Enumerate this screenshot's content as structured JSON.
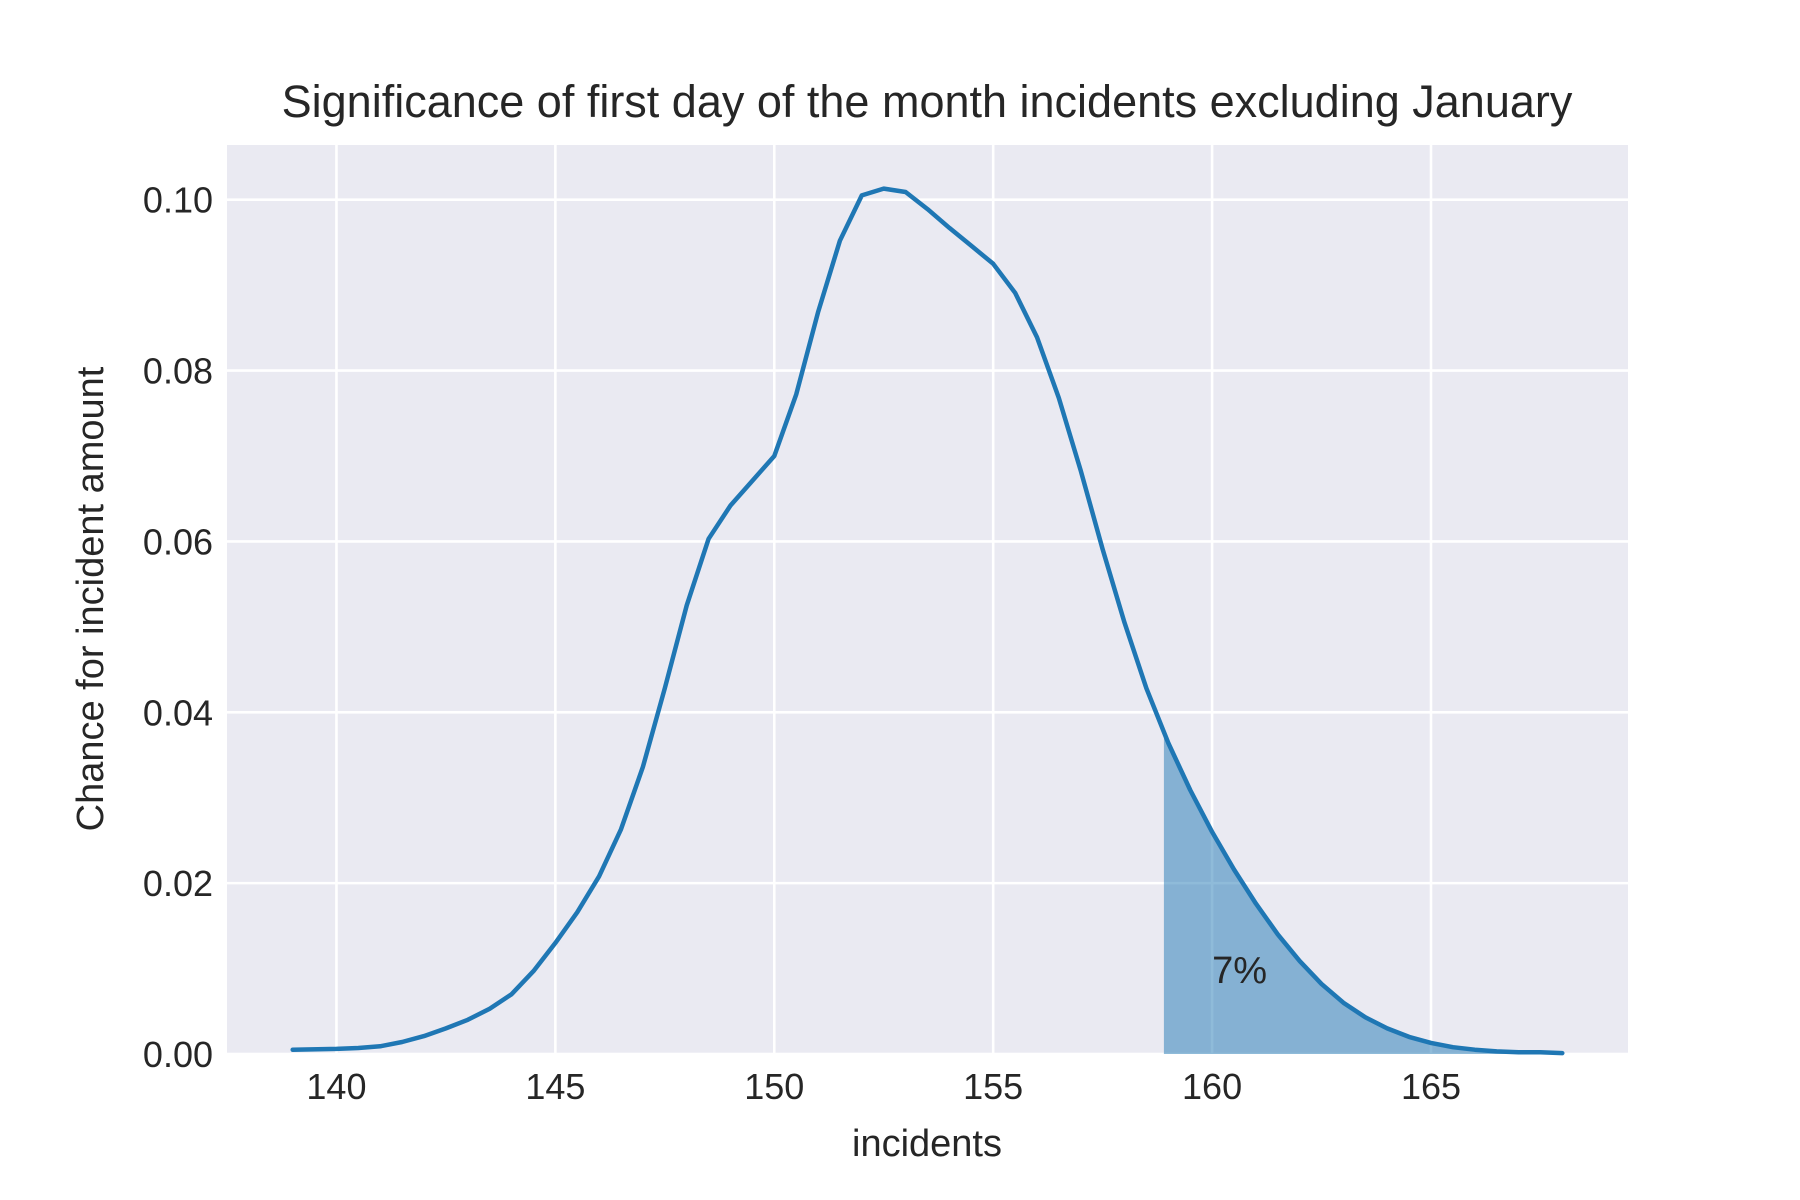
{
  "chart_data": {
    "type": "area",
    "title": "Significance of first day of the month incidents excluding January",
    "xlabel": "incidents",
    "ylabel": "Chance for incident amount",
    "xlim": [
      137.5,
      169.5
    ],
    "ylim": [
      0,
      0.1064
    ],
    "x_ticks": [
      140,
      145,
      150,
      155,
      160,
      165
    ],
    "x_tick_labels": [
      "140",
      "145",
      "150",
      "155",
      "160",
      "165"
    ],
    "y_ticks": [
      0,
      0.02,
      0.04,
      0.06,
      0.08,
      0.1
    ],
    "y_tick_labels": [
      "0.00",
      "0.02",
      "0.04",
      "0.06",
      "0.08",
      "0.10"
    ],
    "grid": true,
    "colors": {
      "line": "#1f77b4",
      "fill": "#1f77b4",
      "background": "#eaeaf2",
      "grid": "#ffffff"
    },
    "series": [
      {
        "x": [
          139,
          140,
          140.5,
          141,
          141.5,
          142,
          142.5,
          143,
          143.5,
          144,
          144.5,
          145,
          145.5,
          146,
          146.5,
          147,
          147.5,
          148,
          148.5,
          149,
          149.5,
          150,
          150.5,
          151,
          151.5,
          152,
          152.5,
          153,
          153.5,
          154,
          154.5,
          155,
          155.5,
          156,
          156.5,
          157,
          157.5,
          158,
          158.5,
          159,
          159.5,
          160,
          160.5,
          161,
          161.5,
          162,
          162.5,
          163,
          163.5,
          164,
          164.5,
          165,
          165.5,
          166,
          166.5,
          167,
          167.5,
          168
        ],
        "y": [
          0.0005,
          0.0006,
          0.0007,
          0.0009,
          0.0014,
          0.0021,
          0.003,
          0.004,
          0.0053,
          0.007,
          0.0097,
          0.013,
          0.0166,
          0.0208,
          0.0263,
          0.0336,
          0.0428,
          0.0525,
          0.0603,
          0.0642,
          0.0671,
          0.07,
          0.0772,
          0.0868,
          0.0952,
          0.1005,
          0.1013,
          0.1009,
          0.0989,
          0.0967,
          0.0946,
          0.0925,
          0.0891,
          0.0839,
          0.0768,
          0.0683,
          0.0591,
          0.0505,
          0.0428,
          0.0364,
          0.0309,
          0.026,
          0.0216,
          0.0176,
          0.014,
          0.0109,
          0.0082,
          0.006,
          0.0043,
          0.003,
          0.002,
          0.0013,
          0.0008,
          0.0005,
          0.0003,
          0.0002,
          0.0002,
          0.0001
        ]
      }
    ],
    "shaded_region": {
      "x_start": 158.9,
      "x_end": 168
    },
    "annotation": {
      "text": "7%",
      "x": 160,
      "y": 0.0083
    }
  }
}
